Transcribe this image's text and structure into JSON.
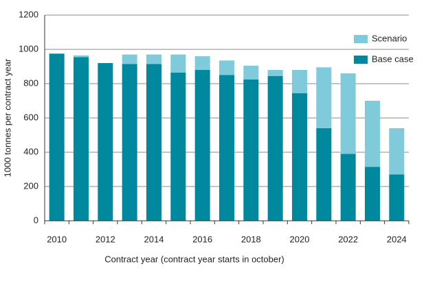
{
  "chart_data": {
    "type": "stacked_bar",
    "x_label": "Contract year (contract year starts in october)",
    "y_label": "1000 tonnes per contract year",
    "categories": [
      "2010",
      null,
      "2012",
      null,
      "2014",
      null,
      "2016",
      null,
      "2018",
      null,
      "2020",
      null,
      "2022",
      null,
      "2024"
    ],
    "series": [
      {
        "name": "Base case",
        "color": "#00889e",
        "values": [
          975,
          955,
          920,
          915,
          915,
          865,
          880,
          850,
          825,
          845,
          745,
          540,
          390,
          315,
          270
        ]
      },
      {
        "name": "Scenario",
        "color": "#7fcadb",
        "values": [
          0,
          10,
          0,
          55,
          55,
          105,
          80,
          85,
          80,
          35,
          135,
          355,
          470,
          385,
          270
        ]
      }
    ],
    "ylim": [
      0,
      1200
    ],
    "yticks": [
      0,
      200,
      400,
      600,
      800,
      1000,
      1200
    ],
    "grid": true,
    "legend": "top-right"
  }
}
